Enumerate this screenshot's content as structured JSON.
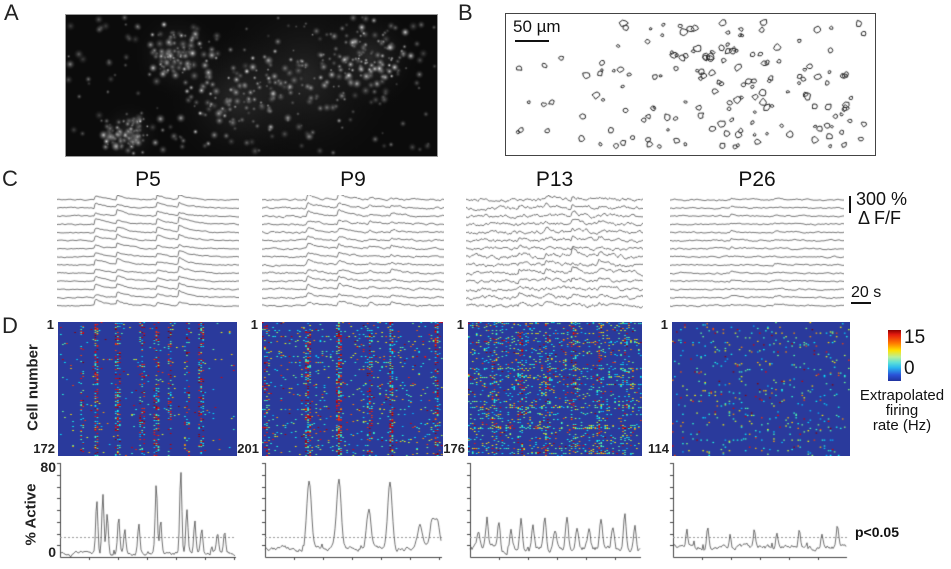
{
  "figure": {
    "panel_a": {
      "label": "A"
    },
    "panel_b": {
      "label": "B",
      "scale_bar_text": "50 µm"
    },
    "panel_c": {
      "label": "C",
      "titles": [
        "P5",
        "P9",
        "P13",
        "P26"
      ],
      "amp_scale_line1": "300 %",
      "amp_scale_line2": "Δ F/F",
      "time_scale": "20 s"
    },
    "panel_d": {
      "label": "D",
      "y_axis_label": "Cell number",
      "cell_first": "1",
      "cell_counts": [
        "172",
        "201",
        "176",
        "114"
      ],
      "colorbar": {
        "max": "15",
        "min": "0",
        "label_line1": "Extrapolated",
        "label_line2": "firing",
        "label_line3": "rate (Hz)"
      },
      "active_plots": {
        "y_label": "% Active",
        "y_max": "80",
        "y_min": "0",
        "significance_label": "p<0.05"
      }
    }
  },
  "colors": {
    "heatmap_bg": "#2a3a9c",
    "trace": "#3d3d3d",
    "threshold_line": "#9a9a9a",
    "colorbar_stops": [
      "#8b0000 0%",
      "#e51a0e 9%",
      "#ff7a00 26%",
      "#ffe100 40%",
      "#b8f09a 53%",
      "#5ce0d8 64%",
      "#2bb7ef 74%",
      "#2a52d8 88%",
      "#20339e 100%"
    ]
  },
  "chart_data": [
    {
      "type": "heatmap",
      "title": "Extrapolated firing rate rasters per cell over time",
      "y_label": "Cell number",
      "colormap": "jet",
      "vmin": 0,
      "vmax": 15,
      "panels": [
        {
          "age": "P5",
          "n_cells": 172,
          "event_times_frac": [
            0.13,
            0.21,
            0.33,
            0.47,
            0.55,
            0.62,
            0.72,
            0.8
          ],
          "event_strengths": [
            0.4,
            0.9,
            0.8,
            0.5,
            0.7,
            0.5,
            0.45,
            0.6
          ],
          "speckle_prob": 0.015,
          "hot_row_prob": 0.04
        },
        {
          "age": "P9",
          "n_cells": 201,
          "event_times_frac": [
            0.02,
            0.25,
            0.42,
            0.59,
            0.71,
            0.96
          ],
          "event_strengths": [
            0.4,
            0.85,
            0.9,
            0.5,
            0.85,
            0.7
          ],
          "speckle_prob": 0.06,
          "hot_row_prob": 0.1
        },
        {
          "age": "P13",
          "n_cells": 176,
          "event_times_frac": [
            0.15,
            0.3,
            0.45,
            0.6,
            0.75,
            0.9
          ],
          "event_strengths": [
            0.3,
            0.35,
            0.3,
            0.35,
            0.3,
            0.3
          ],
          "speckle_prob": 0.12,
          "hot_row_prob": 0.12
        },
        {
          "age": "P26",
          "n_cells": 114,
          "event_times_frac": [],
          "event_strengths": [],
          "speckle_prob": 0.055,
          "hot_row_prob": 0.03
        }
      ]
    },
    {
      "type": "line",
      "title": "Ca2+ fluorescence traces (ΔF/F) of example cells",
      "n_traces_per_panel": 14,
      "amp_scale_pct": 300,
      "time_scale_s": 20,
      "panels": [
        {
          "age": "P5",
          "noise": 0.9,
          "events": [
            [
              0.21,
              1.0
            ],
            [
              0.33,
              0.9
            ],
            [
              0.55,
              0.85
            ],
            [
              0.67,
              1.0
            ]
          ]
        },
        {
          "age": "P9",
          "noise": 1.4,
          "events": [
            [
              0.25,
              0.8
            ],
            [
              0.42,
              1.0
            ],
            [
              0.59,
              0.4
            ],
            [
              0.71,
              0.5
            ]
          ]
        },
        {
          "age": "P13",
          "noise": 2.6,
          "events": [
            [
              0.3,
              0.5
            ],
            [
              0.45,
              0.5
            ],
            [
              0.6,
              0.6
            ],
            [
              0.75,
              0.5
            ]
          ]
        },
        {
          "age": "P26",
          "noise": 1.1,
          "events": [
            [
              0.35,
              0.3
            ],
            [
              0.6,
              0.25
            ]
          ]
        }
      ]
    },
    {
      "type": "line",
      "title": "% Active cells over time",
      "y_label": "% Active",
      "ylim": [
        0,
        80
      ],
      "threshold_pct": 17,
      "threshold_label": "p<0.05",
      "panels": [
        {
          "age": "P5",
          "baseline": 3,
          "noise": 2.5,
          "peak_width_frac": 0.006,
          "peaks": [
            [
              0.21,
              45
            ],
            [
              0.245,
              50
            ],
            [
              0.27,
              36
            ],
            [
              0.335,
              30
            ],
            [
              0.37,
              20
            ],
            [
              0.45,
              26
            ],
            [
              0.55,
              60
            ],
            [
              0.575,
              28
            ],
            [
              0.69,
              72
            ],
            [
              0.725,
              38
            ],
            [
              0.77,
              26
            ],
            [
              0.81,
              20
            ],
            [
              0.9,
              16
            ],
            [
              0.94,
              20
            ]
          ]
        },
        {
          "age": "P9",
          "baseline": 7,
          "noise": 3.0,
          "peak_width_frac": 0.013,
          "peaks": [
            [
              0.25,
              60
            ],
            [
              0.42,
              58
            ],
            [
              0.59,
              33
            ],
            [
              0.71,
              56
            ],
            [
              0.88,
              18
            ],
            [
              0.95,
              24
            ],
            [
              0.98,
              26
            ]
          ]
        },
        {
          "age": "P13",
          "baseline": 7,
          "noise": 4.0,
          "peak_width_frac": 0.008,
          "peaks": [
            [
              0.05,
              14
            ],
            [
              0.1,
              22
            ],
            [
              0.17,
              25
            ],
            [
              0.24,
              18
            ],
            [
              0.3,
              26
            ],
            [
              0.37,
              20
            ],
            [
              0.44,
              24
            ],
            [
              0.5,
              16
            ],
            [
              0.57,
              28
            ],
            [
              0.63,
              20
            ],
            [
              0.7,
              18
            ],
            [
              0.77,
              24
            ],
            [
              0.84,
              20
            ],
            [
              0.91,
              26
            ],
            [
              0.97,
              18
            ]
          ]
        },
        {
          "age": "P26",
          "baseline": 8,
          "noise": 3.2,
          "peak_width_frac": 0.006,
          "peaks": [
            [
              0.08,
              14
            ],
            [
              0.2,
              16
            ],
            [
              0.33,
              12
            ],
            [
              0.47,
              15
            ],
            [
              0.6,
              12
            ],
            [
              0.73,
              14
            ],
            [
              0.86,
              13
            ],
            [
              0.95,
              16
            ]
          ]
        }
      ]
    }
  ]
}
